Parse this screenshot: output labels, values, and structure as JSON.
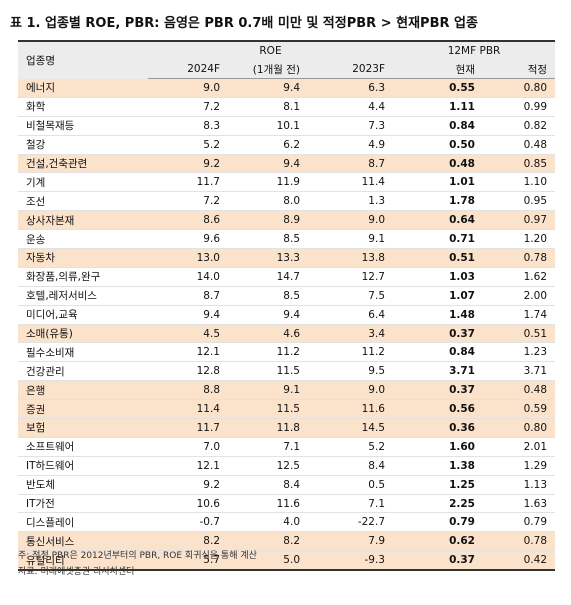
{
  "title": "표 1. 업종별 ROE, PBR: 음영은 PBR 0.7배 미만 및 적정PBR > 현재PBR 업종",
  "table": {
    "header": {
      "name": "업종명",
      "group1": "ROE",
      "group2": "12MF PBR",
      "columns": [
        "2024F",
        "(1개월 전)",
        "2023F",
        "현재",
        "적정"
      ]
    },
    "rows": [
      {
        "cells": [
          "에너지",
          "9.0",
          "9.4",
          "6.3",
          "0.55",
          "0.80"
        ],
        "shaded": true
      },
      {
        "cells": [
          "화학",
          "7.2",
          "8.1",
          "4.4",
          "1.11",
          "0.99"
        ],
        "shaded": false
      },
      {
        "cells": [
          "비철목재등",
          "8.3",
          "10.1",
          "7.3",
          "0.84",
          "0.82"
        ],
        "shaded": false
      },
      {
        "cells": [
          "철강",
          "5.2",
          "6.2",
          "4.9",
          "0.50",
          "0.48"
        ],
        "shaded": false
      },
      {
        "cells": [
          "건설,건축관련",
          "9.2",
          "9.4",
          "8.7",
          "0.48",
          "0.85"
        ],
        "shaded": true
      },
      {
        "cells": [
          "기계",
          "11.7",
          "11.9",
          "11.4",
          "1.01",
          "1.10"
        ],
        "shaded": false
      },
      {
        "cells": [
          "조선",
          "7.2",
          "8.0",
          "1.3",
          "1.78",
          "0.95"
        ],
        "shaded": false
      },
      {
        "cells": [
          "상사자본재",
          "8.6",
          "8.9",
          "9.0",
          "0.64",
          "0.97"
        ],
        "shaded": true
      },
      {
        "cells": [
          "운송",
          "9.6",
          "8.5",
          "9.1",
          "0.71",
          "1.20"
        ],
        "shaded": false
      },
      {
        "cells": [
          "자동차",
          "13.0",
          "13.3",
          "13.8",
          "0.51",
          "0.78"
        ],
        "shaded": true
      },
      {
        "cells": [
          "화장품,의류,완구",
          "14.0",
          "14.7",
          "12.7",
          "1.03",
          "1.62"
        ],
        "shaded": false
      },
      {
        "cells": [
          "호텔,레저서비스",
          "8.7",
          "8.5",
          "7.5",
          "1.07",
          "2.00"
        ],
        "shaded": false
      },
      {
        "cells": [
          "미디어,교육",
          "9.4",
          "9.4",
          "6.4",
          "1.48",
          "1.74"
        ],
        "shaded": false
      },
      {
        "cells": [
          "소매(유통)",
          "4.5",
          "4.6",
          "3.4",
          "0.37",
          "0.51"
        ],
        "shaded": true
      },
      {
        "cells": [
          "필수소비재",
          "12.1",
          "11.2",
          "11.2",
          "0.84",
          "1.23"
        ],
        "shaded": false
      },
      {
        "cells": [
          "건강관리",
          "12.8",
          "11.5",
          "9.5",
          "3.71",
          "3.71"
        ],
        "shaded": false
      },
      {
        "cells": [
          "은행",
          "8.8",
          "9.1",
          "9.0",
          "0.37",
          "0.48"
        ],
        "shaded": true
      },
      {
        "cells": [
          "증권",
          "11.4",
          "11.5",
          "11.6",
          "0.56",
          "0.59"
        ],
        "shaded": true
      },
      {
        "cells": [
          "보험",
          "11.7",
          "11.8",
          "14.5",
          "0.36",
          "0.80"
        ],
        "shaded": true
      },
      {
        "cells": [
          "소프트웨어",
          "7.0",
          "7.1",
          "5.2",
          "1.60",
          "2.01"
        ],
        "shaded": false
      },
      {
        "cells": [
          "IT하드웨어",
          "12.1",
          "12.5",
          "8.4",
          "1.38",
          "1.29"
        ],
        "shaded": false
      },
      {
        "cells": [
          "반도체",
          "9.2",
          "8.4",
          "0.5",
          "1.25",
          "1.13"
        ],
        "shaded": false
      },
      {
        "cells": [
          "IT가전",
          "10.6",
          "11.6",
          "7.1",
          "2.25",
          "1.63"
        ],
        "shaded": false
      },
      {
        "cells": [
          "디스플레이",
          "-0.7",
          "4.0",
          "-22.7",
          "0.79",
          "0.79"
        ],
        "shaded": false
      },
      {
        "cells": [
          "통신서비스",
          "8.2",
          "8.2",
          "7.9",
          "0.62",
          "0.78"
        ],
        "shaded": true
      },
      {
        "cells": [
          "유틸리티",
          "5.7",
          "5.0",
          "-9.3",
          "0.37",
          "0.42"
        ],
        "shaded": true
      }
    ]
  },
  "notes": [
    "주: 적정 PBR은 2012년부터의 PBR, ROE 회귀식을 통해 계산",
    "자료: 미래에셋증권 리서치센터"
  ]
}
